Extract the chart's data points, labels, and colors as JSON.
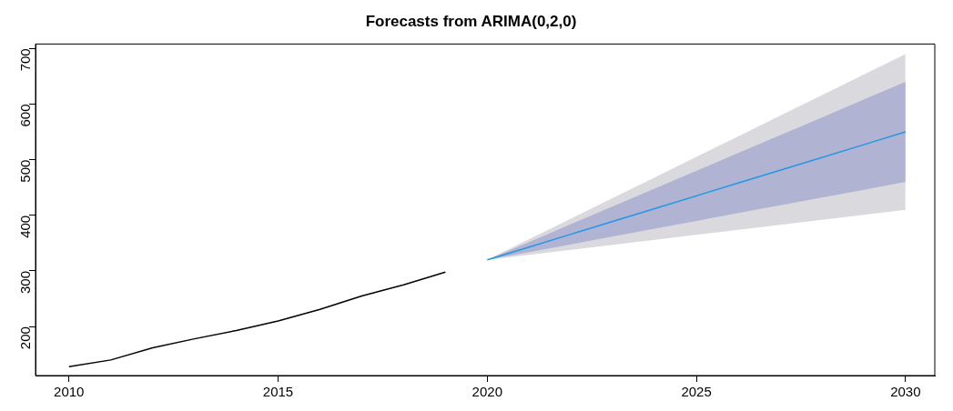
{
  "chart_data": {
    "type": "line",
    "title": "Forecasts from ARIMA(0,2,0)",
    "xlim": [
      2009.2,
      2030.7
    ],
    "xticks": [
      2010,
      2015,
      2020,
      2025,
      2030
    ],
    "ylim": [
      112,
      708
    ],
    "yticks": [
      200,
      300,
      400,
      500,
      600,
      700
    ],
    "grid": false,
    "legend": false,
    "marker": "none",
    "line_style": "solid",
    "series": [
      {
        "color": "#000000",
        "x": [
          2010,
          2011,
          2012,
          2013,
          2014,
          2015,
          2016,
          2017,
          2018,
          2019
        ],
        "values": [
          128,
          140,
          162,
          178,
          193,
          210,
          231,
          255,
          275,
          298
        ]
      },
      {
        "color": "#d9d9de",
        "x": [
          2020,
          2021,
          2022,
          2023,
          2024,
          2025,
          2026,
          2027,
          2028,
          2029,
          2030
        ],
        "values": [
          null,
          null,
          null,
          null,
          null,
          null,
          null,
          null,
          null,
          null,
          null
        ],
        "lower": [
          320,
          329,
          338,
          347,
          356,
          365,
          374,
          383,
          392,
          401,
          410
        ],
        "upper": [
          320,
          357,
          394,
          431,
          468,
          505,
          542,
          579,
          616,
          653,
          690
        ]
      },
      {
        "color": "#2297e6",
        "x": [
          2020,
          2021,
          2022,
          2023,
          2024,
          2025,
          2026,
          2027,
          2028,
          2029,
          2030
        ],
        "values": [
          320,
          343,
          366,
          389,
          412,
          435,
          458,
          481,
          504,
          527,
          550
        ],
        "lower": [
          320,
          334,
          348,
          362,
          376,
          390,
          404,
          418,
          432,
          446,
          460
        ],
        "upper": [
          320,
          352,
          384,
          416,
          448,
          480,
          512,
          544,
          576,
          608,
          640
        ]
      }
    ]
  }
}
